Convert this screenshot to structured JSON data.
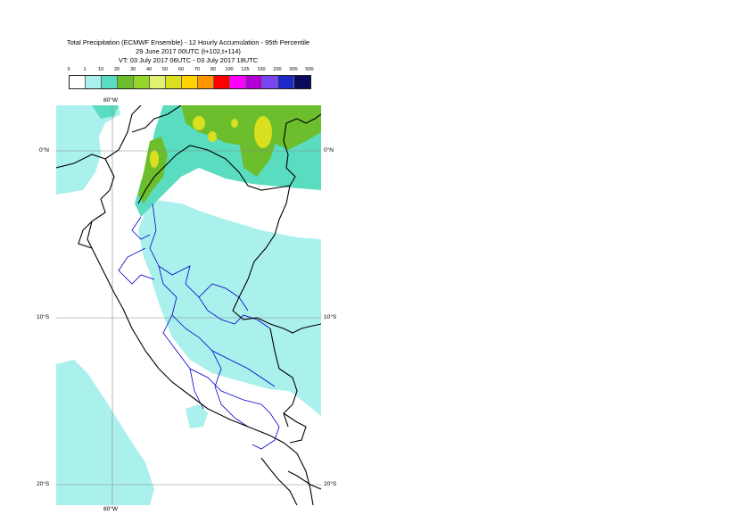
{
  "title": {
    "line1": "Total Precipitation (ECMWF Ensemble) - 12 Hourly Accumulation - 95th Percentile",
    "line2": "29 June 2017 00UTC (t+102,t+114)",
    "line3": "VT: 03 July 2017 06UTC - 03 July 2017 18UTC"
  },
  "legend": {
    "labels": [
      "0",
      "1",
      "10",
      "20",
      "30",
      "40",
      "50",
      "60",
      "70",
      "80",
      "100",
      "125",
      "150",
      "200",
      "300",
      "500"
    ],
    "colors": [
      "#ffffff",
      "#aaf0ec",
      "#5adcc0",
      "#6cbe2c",
      "#94d62a",
      "#e0f070",
      "#d8e020",
      "#ffd200",
      "#ff9600",
      "#ff0000",
      "#ff00ff",
      "#b400d8",
      "#7846f0",
      "#1e28c8",
      "#0a0a5a"
    ]
  },
  "axes": {
    "lon_top": "80°W",
    "lon_bottom": "80°W",
    "lat_left": [
      "0°N",
      "10°S",
      "20°S"
    ],
    "lat_right": [
      "0°N",
      "10°S",
      "20°S"
    ]
  },
  "colors": {
    "coast": "#000000",
    "admin": "#0000cc",
    "grid": "#888888",
    "light_precip": "#aaf0ec",
    "med_precip": "#5adcc0",
    "heavy_precip": "#6cbe2c",
    "very_heavy": "#d8e020"
  }
}
